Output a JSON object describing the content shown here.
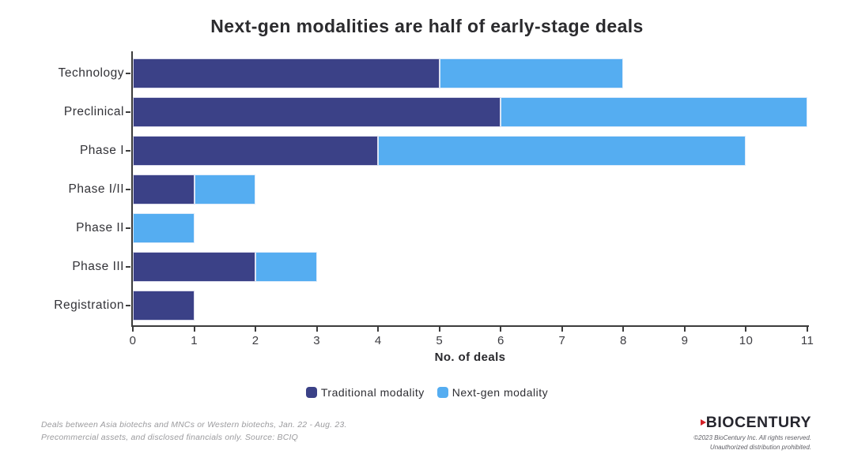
{
  "chart_data": {
    "type": "bar",
    "orientation": "horizontal",
    "stacked": true,
    "title": "Next-gen modalities are half of early-stage deals",
    "categories": [
      "Technology",
      "Preclinical",
      "Phase I",
      "Phase I/II",
      "Phase II",
      "Phase III",
      "Registration"
    ],
    "series": [
      {
        "name": "Traditional modality",
        "color": "#3B4187",
        "values": [
          5,
          6,
          4,
          1,
          0,
          2,
          1
        ]
      },
      {
        "name": "Next-gen modality",
        "color": "#55ADF1",
        "values": [
          3,
          5,
          6,
          1,
          1,
          1,
          0
        ]
      }
    ],
    "totals": [
      8,
      11,
      10,
      2,
      1,
      3,
      1
    ],
    "xlabel": "No. of deals",
    "xlim": [
      0,
      11
    ],
    "x_ticks": [
      0,
      1,
      2,
      3,
      4,
      5,
      6,
      7,
      8,
      9,
      10,
      11
    ],
    "legend_position": "bottom",
    "grid": false,
    "axis_color": "#3c3c3c"
  },
  "footnote": {
    "line1": "Deals between Asia biotechs and MNCs or Western biotechs, Jan. 22 - Aug. 23.",
    "line2": "Precommercial assets, and disclosed financials only. Source: BCIQ"
  },
  "branding": {
    "logo_text": "BIOCENTURY",
    "logo_accent_color": "#D32027",
    "copyright_line1": "©2023 BioCentury Inc. All rights reserved.",
    "copyright_line2": "Unauthorized distribution prohibited."
  }
}
